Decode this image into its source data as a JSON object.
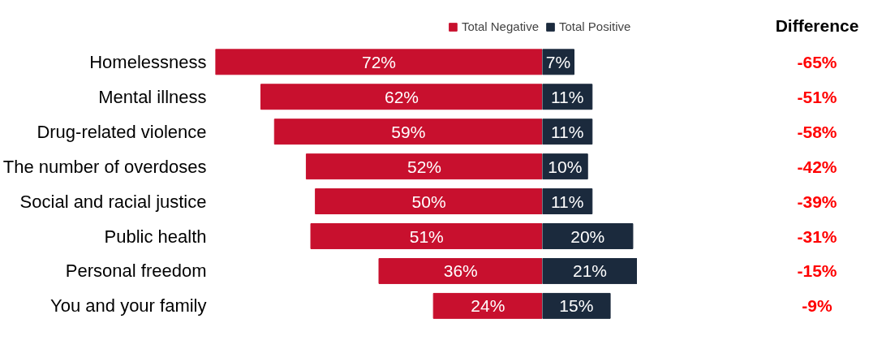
{
  "chart_data": [
    {
      "type": "bar",
      "orientation": "horizontal",
      "legend": "top right",
      "grid": false,
      "tick_labels": "y",
      "xlim": [
        72,
        0
      ],
      "categories": [
        "Homelessness",
        "Mental illness",
        "Drug-related violence",
        "The number of overdoses",
        "Social and racial justice",
        "Public health",
        "Personal freedom",
        "You and your family"
      ],
      "series": [
        {
          "name": "Total Negative",
          "color": "#c8102e",
          "values": [
            72,
            62,
            59,
            52,
            50,
            51,
            36,
            24
          ],
          "value_labels": [
            "72%",
            "62%",
            "59%",
            "52%",
            "50%",
            "51%",
            "36%",
            "24%"
          ]
        }
      ]
    },
    {
      "type": "bar",
      "orientation": "horizontal",
      "legend": "top left",
      "grid": false,
      "tick_labels": false,
      "xlim": [
        0,
        21
      ],
      "categories": [
        null,
        null,
        null,
        null,
        null,
        null,
        null,
        null
      ],
      "series": [
        {
          "name": "Total Positive",
          "color": "#1b2a3d",
          "values": [
            7,
            11,
            11,
            10,
            11,
            20,
            21,
            15
          ],
          "value_labels": [
            "7%",
            "11%",
            "11%",
            "10%",
            "11%",
            "20%",
            "21%",
            "15%"
          ]
        }
      ]
    },
    {
      "type": "other",
      "title": "Difference",
      "annotations": [
        "-65%",
        "-51%",
        "-58%",
        "-42%",
        "-39%",
        "-31%",
        "-15%",
        "-9%"
      ]
    }
  ]
}
